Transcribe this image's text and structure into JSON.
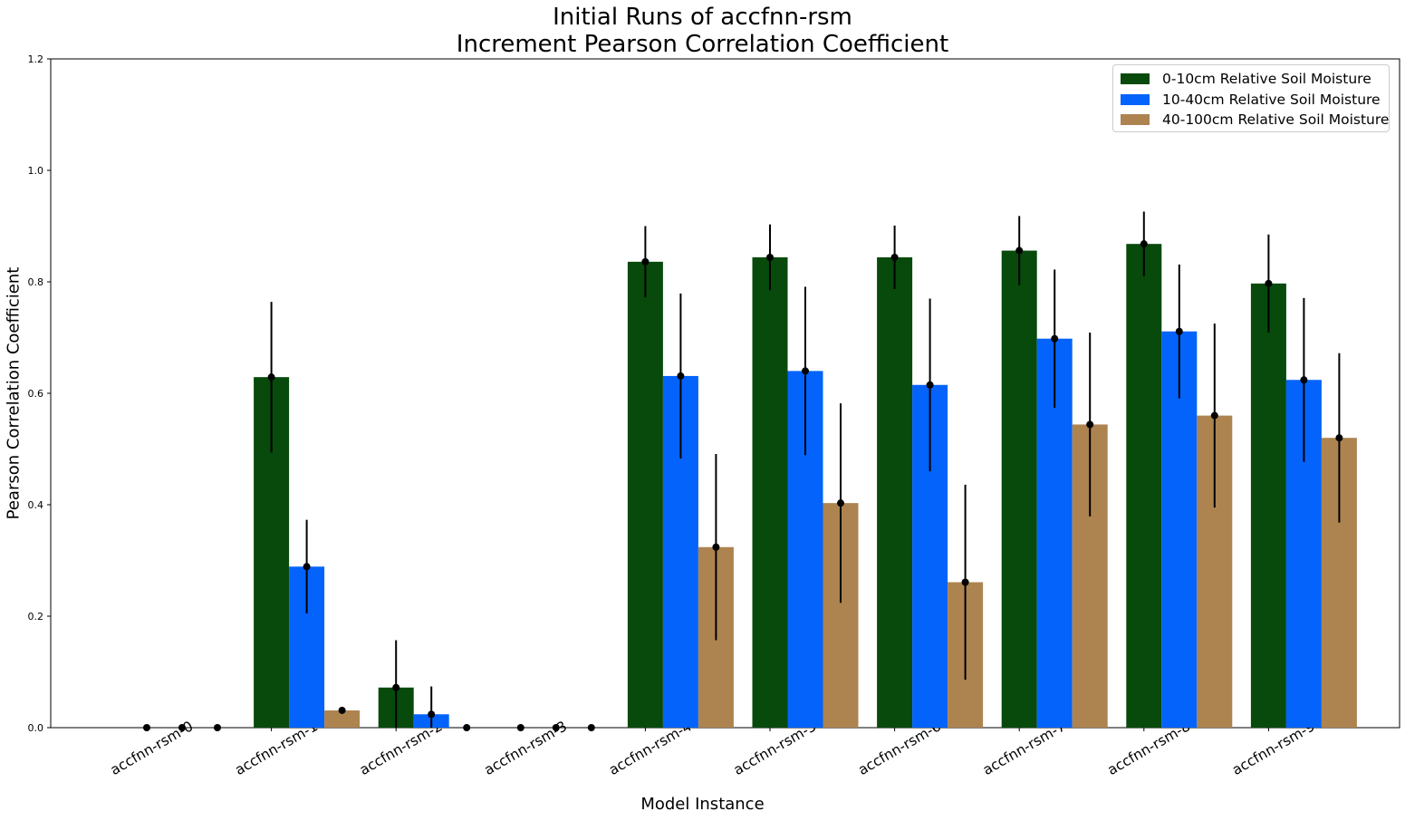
{
  "chart_data": {
    "type": "bar",
    "title": "Initial Runs of accfnn-rsm",
    "subtitle": "Increment Pearson Correlation Coefficient",
    "xlabel": "Model Instance",
    "ylabel": "Pearson Correlation Coefficient",
    "ylim": [
      0,
      1.2
    ],
    "yticks": [
      "0.0",
      "0.2",
      "0.4",
      "0.6",
      "0.8",
      "1.0",
      "1.2"
    ],
    "legend_position": "top-right",
    "grid": false,
    "categories": [
      "accfnn-rsm-0",
      "accfnn-rsm-1",
      "accfnn-rsm-2",
      "accfnn-rsm-3",
      "accfnn-rsm-4",
      "accfnn-rsm-5",
      "accfnn-rsm-6",
      "accfnn-rsm-7",
      "accfnn-rsm-8",
      "accfnn-rsm-9"
    ],
    "series": [
      {
        "name": "0-10cm Relative Soil Moisture",
        "color": "#074a0c",
        "values": [
          0.0,
          0.629,
          0.072,
          0.0,
          0.836,
          0.844,
          0.844,
          0.856,
          0.868,
          0.797
        ],
        "error": [
          0.0,
          0.135,
          0.085,
          0.0,
          0.064,
          0.059,
          0.057,
          0.062,
          0.058,
          0.088
        ]
      },
      {
        "name": "10-40cm Relative Soil Moisture",
        "color": "#0363fb",
        "values": [
          0.0,
          0.289,
          0.024,
          0.0,
          0.631,
          0.64,
          0.615,
          0.698,
          0.711,
          0.624
        ],
        "error": [
          0.0,
          0.084,
          0.05,
          0.0,
          0.148,
          0.151,
          0.155,
          0.124,
          0.12,
          0.147
        ]
      },
      {
        "name": "40-100cm Relative Soil Moisture",
        "color": "#ad8350",
        "values": [
          0.0,
          0.031,
          0.0,
          0.0,
          0.324,
          0.403,
          0.261,
          0.544,
          0.56,
          0.52
        ],
        "error": [
          0.0,
          0.004,
          0.0,
          0.0,
          0.167,
          0.179,
          0.175,
          0.165,
          0.165,
          0.152
        ]
      }
    ]
  }
}
